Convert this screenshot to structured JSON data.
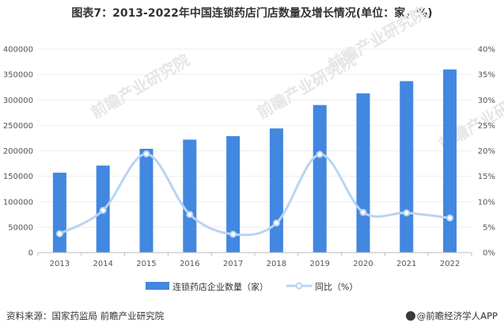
{
  "title": "图表7：2013-2022年中国连锁药店门店数量及增长情况(单位：家，%)",
  "source": "资料来源：国家药监局 前瞻产业研究院",
  "brand": "@前瞻经济学人APP",
  "watermark": "前瞻产业研究院",
  "colors": {
    "bar": "#4287e0",
    "line": "#b9d4f3",
    "axis": "#bbbbbb",
    "grid": "#eeeeee"
  },
  "chart_data": {
    "type": "bar+line",
    "categories": [
      "2013",
      "2014",
      "2015",
      "2016",
      "2017",
      "2018",
      "2019",
      "2020",
      "2021",
      "2022"
    ],
    "series": [
      {
        "name": "连锁药店企业数量（家）",
        "type": "bar",
        "axis": "left",
        "values": [
          157000,
          171000,
          204000,
          222000,
          229000,
          244000,
          290000,
          313000,
          337000,
          360000
        ]
      },
      {
        "name": "同比（%）",
        "type": "line",
        "axis": "right",
        "values": [
          3.7,
          8.3,
          19.4,
          7.5,
          3.6,
          5.8,
          19.3,
          7.9,
          7.8,
          6.8
        ]
      }
    ],
    "y_left": {
      "min": 0,
      "max": 400000,
      "ticks": [
        "0",
        "50000",
        "100000",
        "150000",
        "200000",
        "250000",
        "300000",
        "350000",
        "400000"
      ]
    },
    "y_right": {
      "min": 0,
      "max": 40,
      "ticks": [
        "0%",
        "5%",
        "10%",
        "15%",
        "20%",
        "25%",
        "30%",
        "35%",
        "40%"
      ]
    }
  }
}
